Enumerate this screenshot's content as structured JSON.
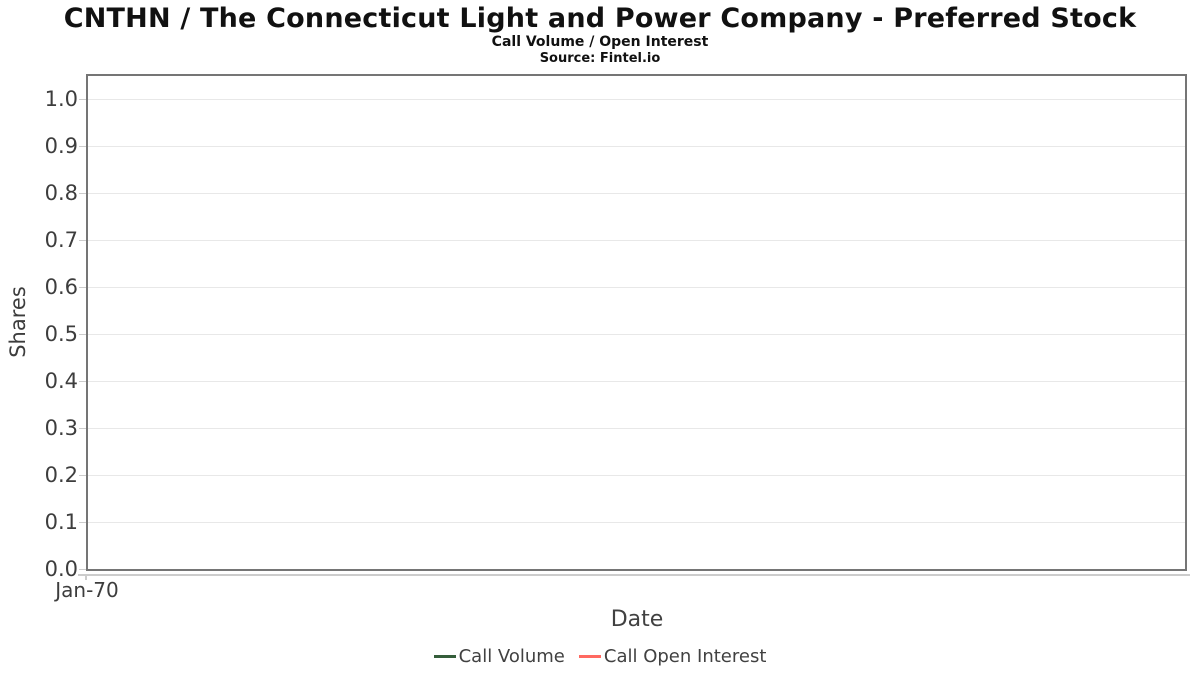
{
  "header": {
    "title": "CNTHN / The Connecticut Light and Power Company - Preferred Stock",
    "subtitle": "Call Volume / Open Interest",
    "source": "Source: Fintel.io"
  },
  "chart_data": {
    "type": "line",
    "title": "CNTHN / The Connecticut Light and Power Company - Preferred Stock",
    "subtitle": "Call Volume / Open Interest",
    "xlabel": "Date",
    "ylabel": "Shares",
    "x_ticks": [
      "Jan-70"
    ],
    "y_ticks": [
      "1.0",
      "0.9",
      "0.8",
      "0.7",
      "0.6",
      "0.5",
      "0.4",
      "0.3",
      "0.2",
      "0.1",
      "0.0"
    ],
    "ylim": [
      0.0,
      1.05
    ],
    "grid": true,
    "legend_position": "bottom",
    "series": [
      {
        "name": "Call Volume",
        "color": "#355e3b",
        "x": [],
        "values": []
      },
      {
        "name": "Call Open Interest",
        "color": "#ff6961",
        "x": [],
        "values": []
      }
    ]
  },
  "colors": {
    "plot_border": "#757575",
    "gridline": "#e8e8e8",
    "tick": "#cccccc",
    "axis_text": "#3d3d3d"
  }
}
